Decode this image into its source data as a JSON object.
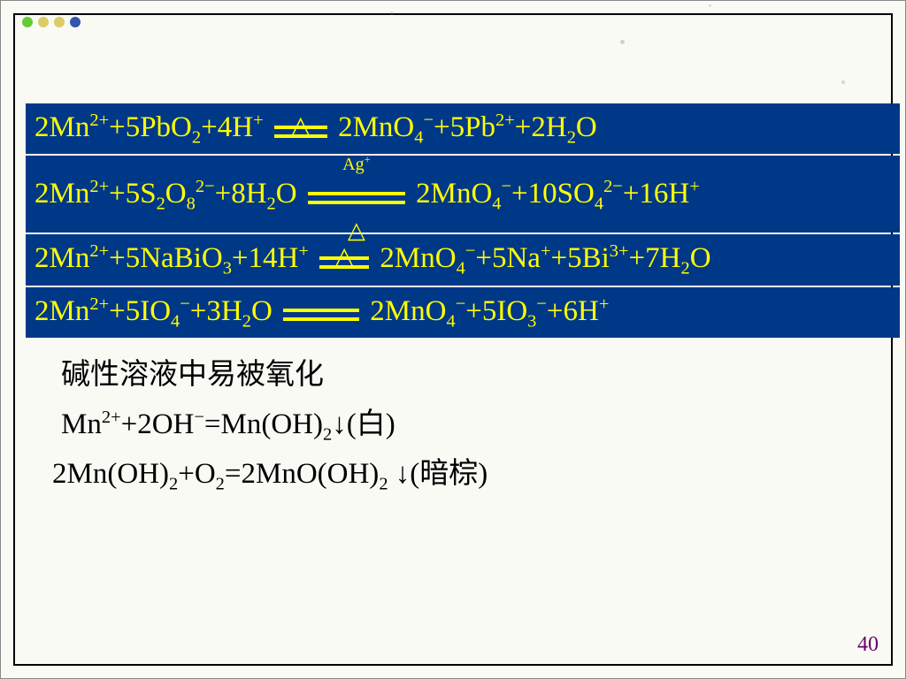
{
  "decor": {
    "bullet_colors": [
      "#66cc33",
      "#ddcc66",
      "#ddcc66",
      "#3355aa"
    ]
  },
  "box": {
    "bg": "#003888",
    "fg": "#ffff00"
  },
  "text": {
    "bg": "#fafaf5",
    "fg": "#000000"
  },
  "pagenum": {
    "value": "40",
    "color": "#660066"
  },
  "equations": {
    "eq1": {
      "lhs_a": "2Mn",
      "lhs_a_sup": "2+",
      "lhs_b": "+5PbO",
      "lhs_b_sub": "2",
      "lhs_c": "+4H",
      "lhs_c_sup": "+",
      "arrow_width": 60,
      "tri_top": "△",
      "rhs_a": "2MnO",
      "rhs_a_sub": "4",
      "rhs_a_sup": "−",
      "rhs_b": "+5Pb",
      "rhs_b_sup": "2+",
      "rhs_c": "+2H",
      "rhs_c_sub": "2",
      "rhs_d": "O"
    },
    "eq2": {
      "lhs_a": "2Mn",
      "lhs_a_sup": "2+",
      "lhs_b": "+5S",
      "lhs_b_sub": "2",
      "lhs_c": "O",
      "lhs_c_sub": "8",
      "lhs_c_sup": "2−",
      "lhs_d": "+8H",
      "lhs_d_sub": "2",
      "lhs_e": "O",
      "arrow_width": 110,
      "cond_top": "Ag",
      "cond_top_sup": "+",
      "cond_bot": "△",
      "rhs_a": " 2MnO",
      "rhs_a_sub": "4",
      "rhs_a_sup": "−",
      "rhs_b": "+10SO",
      "rhs_b_sub": "4",
      "rhs_b_sup": "2−",
      "rhs_c": "+16H",
      "rhs_c_sup": "+"
    },
    "eq3": {
      "lhs_a": "2Mn",
      "lhs_a_sup": "2+",
      "lhs_b": "+5NaBiO",
      "lhs_b_sub": "3",
      "lhs_c": "+14H",
      "lhs_c_sup": "+",
      "arrow_width": 56,
      "tri_top": "△",
      "rhs_a": "2MnO",
      "rhs_a_sub": "4",
      "rhs_a_sup": "−",
      "rhs_b": "+5Na",
      "rhs_b_sup": "+",
      "rhs_c": "+5Bi",
      "rhs_c_sup": "3+",
      "rhs_d": "+7H",
      "rhs_d_sub": "2",
      "rhs_e": "O"
    },
    "eq4": {
      "lhs_a": "2Mn",
      "lhs_a_sup": "2+",
      "lhs_b": "+5IO",
      "lhs_b_sub": "4",
      "lhs_b_sup": "−",
      "lhs_c": "+3H",
      "lhs_c_sub": "2",
      "lhs_d": "O ",
      "arrow_width": 86,
      "rhs_a": "2MnO",
      "rhs_a_sub": "4",
      "rhs_a_sup": "−",
      "rhs_b": "+5IO",
      "rhs_b_sub": "3",
      "rhs_b_sup": "−",
      "rhs_c": "+6H",
      "rhs_c_sup": "+"
    }
  },
  "plain": {
    "line1": "碱性溶液中易被氧化",
    "line2_a": "Mn",
    "line2_a_sup": "2+",
    "line2_b": "+2OH",
    "line2_b_sup": "−",
    "line2_c": "=Mn(OH)",
    "line2_c_sub": "2",
    "line2_d": "↓(白)",
    "line3_a": "2Mn(OH)",
    "line3_a_sub": "2",
    "line3_b": "+O",
    "line3_b_sub": "2",
    "line3_c": "=2MnO(OH)",
    "line3_c_sub": "2",
    "line3_d": " ↓(暗棕)"
  }
}
